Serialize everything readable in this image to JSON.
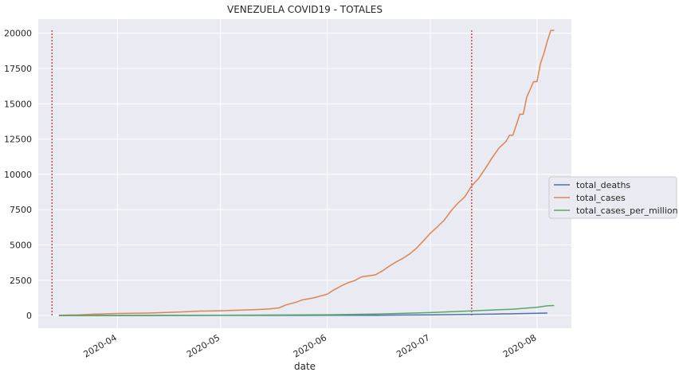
{
  "chart_data": {
    "type": "line",
    "title": "VENEZUELA COVID19 - TOTALES",
    "xlabel": "date",
    "ylabel": "",
    "x_range": [
      "2020-03-09",
      "2020-08-11"
    ],
    "ylim": [
      -900,
      21000
    ],
    "x_ticks": [
      "2020-04",
      "2020-05",
      "2020-06",
      "2020-07",
      "2020-08"
    ],
    "x_tick_dates": [
      "2020-04-01",
      "2020-05-01",
      "2020-06-01",
      "2020-07-01",
      "2020-08-01"
    ],
    "y_ticks": [
      0,
      2500,
      5000,
      7500,
      10000,
      12500,
      15000,
      17500,
      20000
    ],
    "grid": true,
    "legend_position": "center-right outside",
    "vlines": [
      {
        "x": "2020-03-13",
        "color": "#c44e52",
        "style": "dotted",
        "y_from": 0,
        "y_to": 20200
      },
      {
        "x": "2020-07-13",
        "color": "#c44e52",
        "style": "dotted",
        "y_from": 0,
        "y_to": 20200
      }
    ],
    "series": [
      {
        "name": "total_deaths",
        "color": "#4c72b0",
        "points": [
          [
            "2020-03-15",
            0
          ],
          [
            "2020-04-01",
            3
          ],
          [
            "2020-05-01",
            10
          ],
          [
            "2020-06-01",
            14
          ],
          [
            "2020-06-15",
            22
          ],
          [
            "2020-07-01",
            47
          ],
          [
            "2020-07-13",
            83
          ],
          [
            "2020-07-20",
            104
          ],
          [
            "2020-08-01",
            160
          ],
          [
            "2020-08-04",
            171
          ]
        ]
      },
      {
        "name": "total_cases",
        "color": "#dd8452",
        "points": [
          [
            "2020-03-15",
            17
          ],
          [
            "2020-03-21",
            42
          ],
          [
            "2020-03-25",
            91
          ],
          [
            "2020-04-01",
            143
          ],
          [
            "2020-04-10",
            171
          ],
          [
            "2020-04-20",
            256
          ],
          [
            "2020-04-25",
            311
          ],
          [
            "2020-05-01",
            335
          ],
          [
            "2020-05-10",
            402
          ],
          [
            "2020-05-15",
            459
          ],
          [
            "2020-05-18",
            541
          ],
          [
            "2020-05-20",
            749
          ],
          [
            "2020-05-23",
            944
          ],
          [
            "2020-05-25",
            1121
          ],
          [
            "2020-05-28",
            1245
          ],
          [
            "2020-06-01",
            1510
          ],
          [
            "2020-06-03",
            1819
          ],
          [
            "2020-06-05",
            2087
          ],
          [
            "2020-06-07",
            2316
          ],
          [
            "2020-06-09",
            2473
          ],
          [
            "2020-06-11",
            2738
          ],
          [
            "2020-06-13",
            2814
          ],
          [
            "2020-06-15",
            2879
          ],
          [
            "2020-06-17",
            3150
          ],
          [
            "2020-06-19",
            3483
          ],
          [
            "2020-06-21",
            3789
          ],
          [
            "2020-06-23",
            4048
          ],
          [
            "2020-06-25",
            4365
          ],
          [
            "2020-06-27",
            4779
          ],
          [
            "2020-06-29",
            5297
          ],
          [
            "2020-07-01",
            5832
          ],
          [
            "2020-07-03",
            6273
          ],
          [
            "2020-07-05",
            6750
          ],
          [
            "2020-07-07",
            7411
          ],
          [
            "2020-07-09",
            7960
          ],
          [
            "2020-07-11",
            8408
          ],
          [
            "2020-07-13",
            9178
          ],
          [
            "2020-07-15",
            9707
          ],
          [
            "2020-07-17",
            10428
          ],
          [
            "2020-07-19",
            11191
          ],
          [
            "2020-07-21",
            11891
          ],
          [
            "2020-07-23",
            12334
          ],
          [
            "2020-07-24",
            12774
          ],
          [
            "2020-07-25",
            12774
          ],
          [
            "2020-07-27",
            14263
          ],
          [
            "2020-07-28",
            14263
          ],
          [
            "2020-07-29",
            15463
          ],
          [
            "2020-07-31",
            16571
          ],
          [
            "2020-08-01",
            16571
          ],
          [
            "2020-08-02",
            17859
          ],
          [
            "2020-08-03",
            18574
          ],
          [
            "2020-08-04",
            19443
          ],
          [
            "2020-08-05",
            20206
          ],
          [
            "2020-08-06",
            20206
          ]
        ]
      },
      {
        "name": "total_cases_per_million",
        "color": "#55a868",
        "points": [
          [
            "2020-03-15",
            1
          ],
          [
            "2020-04-01",
            5
          ],
          [
            "2020-05-01",
            12
          ],
          [
            "2020-06-01",
            53
          ],
          [
            "2020-06-15",
            101
          ],
          [
            "2020-07-01",
            205
          ],
          [
            "2020-07-13",
            323
          ],
          [
            "2020-07-20",
            400
          ],
          [
            "2020-07-25",
            449
          ],
          [
            "2020-08-01",
            583
          ],
          [
            "2020-08-04",
            684
          ],
          [
            "2020-08-06",
            711
          ]
        ]
      }
    ]
  }
}
